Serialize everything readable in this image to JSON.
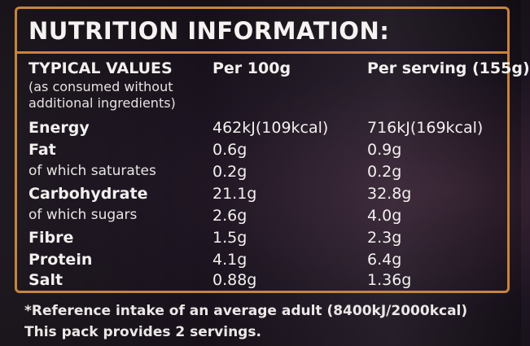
{
  "title": "NUTRITION INFORMATION:",
  "header": {
    "typical_values": "TYPICAL VALUES",
    "note_line1": "(as consumed without",
    "note_line2": "additional ingredients)",
    "per_100g": "Per 100g",
    "per_serving": "Per serving (155g)"
  },
  "rows": [
    {
      "label": "Energy",
      "per_100g": "462kJ(109kcal)",
      "per_serving": "716kJ(169kcal)"
    },
    {
      "label": "Fat",
      "per_100g": "0.6g",
      "per_serving": "0.9g"
    },
    {
      "label": "of which saturates",
      "per_100g": "0.2g",
      "per_serving": "0.2g"
    },
    {
      "label": "Carbohydrate",
      "per_100g": "21.1g",
      "per_serving": "32.8g"
    },
    {
      "label": "of which sugars",
      "per_100g": "2.6g",
      "per_serving": "4.0g"
    },
    {
      "label": "Fibre",
      "per_100g": "1.5g",
      "per_serving": "2.3g"
    },
    {
      "label": "Protein",
      "per_100g": "4.1g",
      "per_serving": "6.4g"
    },
    {
      "label": "Salt",
      "per_100g": "0.88g",
      "per_serving": "1.36g"
    }
  ],
  "footer": {
    "reference": "*Reference intake of an average adult (8400kJ/2000kcal)",
    "servings": "This pack provides 2 servings."
  },
  "colors": {
    "border": "#c7843e",
    "text": "#f2f0ee",
    "background": "#1c1420"
  }
}
